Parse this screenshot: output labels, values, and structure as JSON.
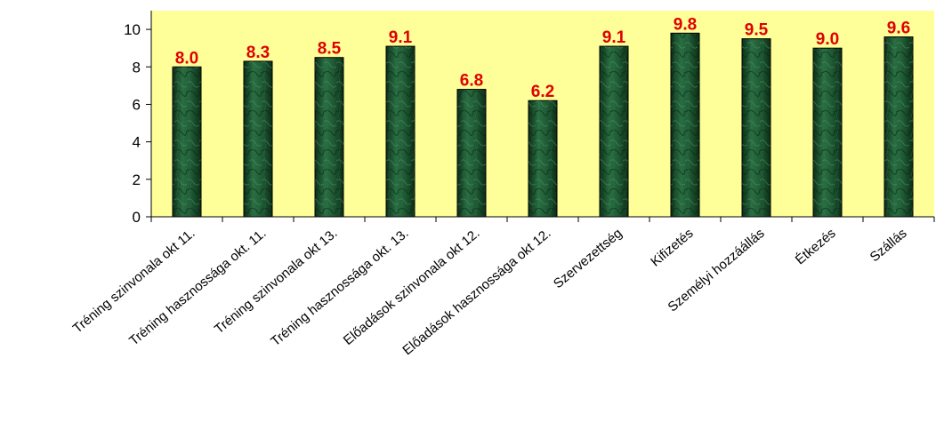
{
  "chart_data": {
    "type": "bar",
    "title": "",
    "xlabel": "",
    "ylabel": "",
    "categories": [
      "Tréning szinvonala okt 11.",
      "Tréning hasznossága okt. 11.",
      "Tréning szinvonala okt 13.",
      "Tréning hasznossága okt. 13.",
      "Előadások szinvonala okt 12.",
      "Előadások hasznossága okt 12.",
      "Szervezettség",
      "Kifizetés",
      "Személyi hozzáállás",
      "Étkezés",
      "Szállás"
    ],
    "values": [
      8.0,
      8.3,
      8.5,
      9.1,
      6.8,
      6.2,
      9.1,
      9.8,
      9.5,
      9.0,
      9.6
    ],
    "data_labels": [
      "8.0",
      "8.3",
      "8.5",
      "9.1",
      "6.8",
      "6.2",
      "9.1",
      "9.8",
      "9.5",
      "9.0",
      "9.6"
    ],
    "ylim": [
      0,
      11
    ],
    "yticks": [
      0,
      2,
      4,
      6,
      8,
      10
    ],
    "grid": false,
    "legend": "none",
    "colors": {
      "plot_background": "#ffff99",
      "bar_fill": "#1f5a34",
      "bar_dark": "#0c2e18",
      "data_label": "#e00000"
    }
  }
}
